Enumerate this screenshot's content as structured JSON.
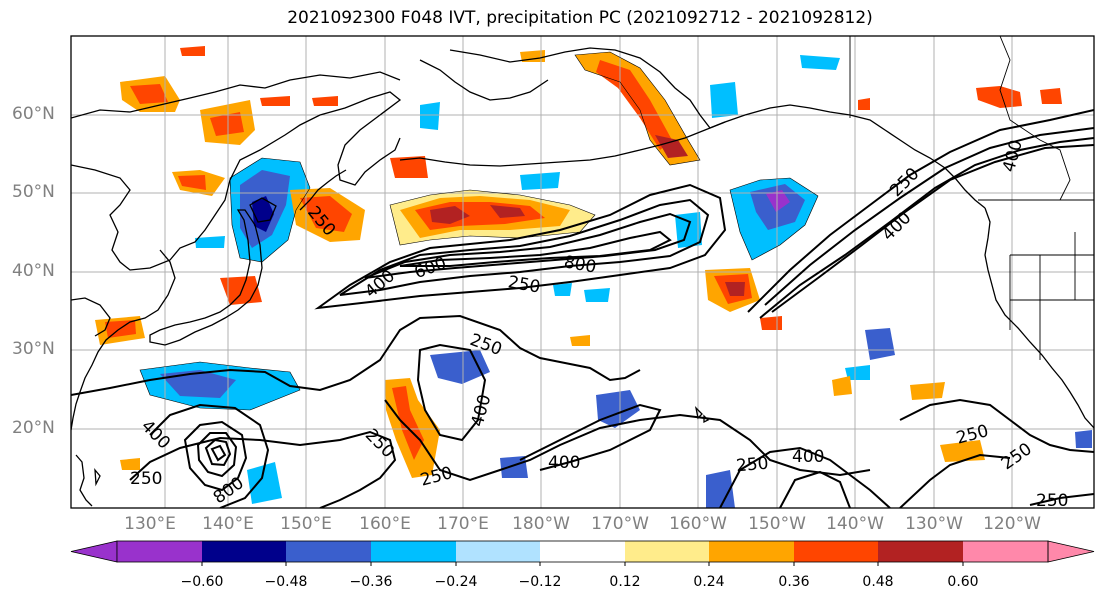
{
  "title": "2021092300 F048 IVT, precipitation PC (2021092712 - 2021092812)",
  "lat_labels": [
    "60°N",
    "50°N",
    "40°N",
    "30°N",
    "20°N"
  ],
  "lon_labels": [
    "130°E",
    "140°E",
    "150°E",
    "160°E",
    "170°E",
    "180°W",
    "170°W",
    "160°W",
    "150°W",
    "140°W",
    "130°W",
    "120°W"
  ],
  "contour_labels": [
    "250",
    "400",
    "600",
    "800",
    "250",
    "250",
    "400",
    "250",
    "400",
    "250",
    "800",
    "250",
    "400",
    "250",
    "400",
    "250",
    "250",
    "250",
    "400"
  ],
  "colorbar": {
    "tick_labels": [
      "−0.60",
      "−0.48",
      "−0.36",
      "−0.24",
      "−0.12",
      "0.12",
      "0.24",
      "0.36",
      "0.48",
      "0.60"
    ],
    "colors": [
      "#9932cc",
      "#00008b",
      "#3a5fcd",
      "#00bfff",
      "#b0e2ff",
      "#ffffff",
      "#ffec8b",
      "#ffa500",
      "#ff4500",
      "#b22222",
      "#ff88aa",
      "#ff88aa"
    ]
  },
  "colors": {
    "grid": "#b0b0b0",
    "coast": "#000000",
    "contour": "#000000",
    "tick_text": "#808080"
  }
}
